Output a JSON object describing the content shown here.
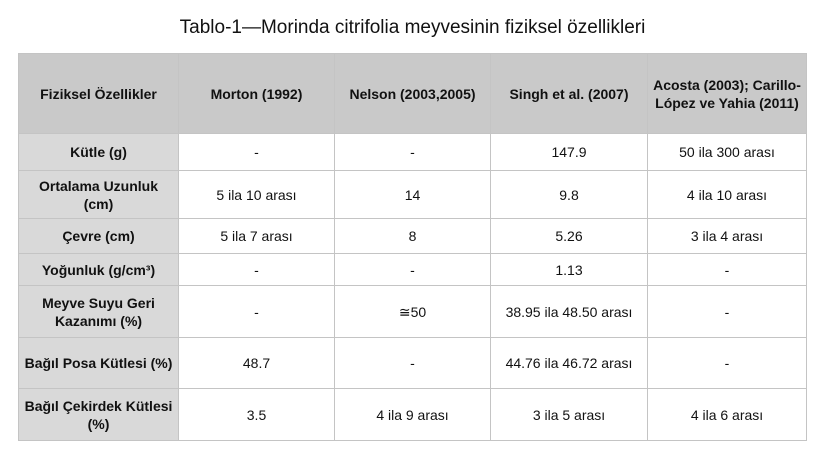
{
  "title": "Tablo-1—Morinda citrifolia meyvesinin fiziksel özellikleri",
  "table": {
    "header": [
      "Fiziksel Özellikler",
      "Morton (1992)",
      "Nelson (2003,2005)",
      "Singh et al. (2007)",
      "Acosta (2003); Carillo-López ve Yahia (2011)"
    ],
    "rows": [
      [
        "Kütle (g)",
        "-",
        "-",
        "147.9",
        "50 ila 300 arası"
      ],
      [
        "Ortalama Uzunluk (cm)",
        "5 ila 10 arası",
        "14",
        "9.8",
        "4 ila 10 arası"
      ],
      [
        "Çevre (cm)",
        "5 ila 7 arası",
        "8",
        "5.26",
        "3 ila 4 arası"
      ],
      [
        "Yoğunluk (g/cm³)",
        "-",
        "-",
        "1.13",
        "-"
      ],
      [
        "Meyve Suyu Geri Kazanımı (%)",
        "-",
        "≅50",
        "38.95 ila 48.50 arası",
        "-"
      ],
      [
        "Bağıl Posa Kütlesi (%)",
        "48.7",
        "-",
        "44.76 ila 46.72 arası",
        "-"
      ],
      [
        "Bağıl Çekirdek Kütlesi (%)",
        "3.5",
        "4 ila 9 arası",
        "3 ila 5 arası",
        "4 ila 6 arası"
      ]
    ]
  }
}
